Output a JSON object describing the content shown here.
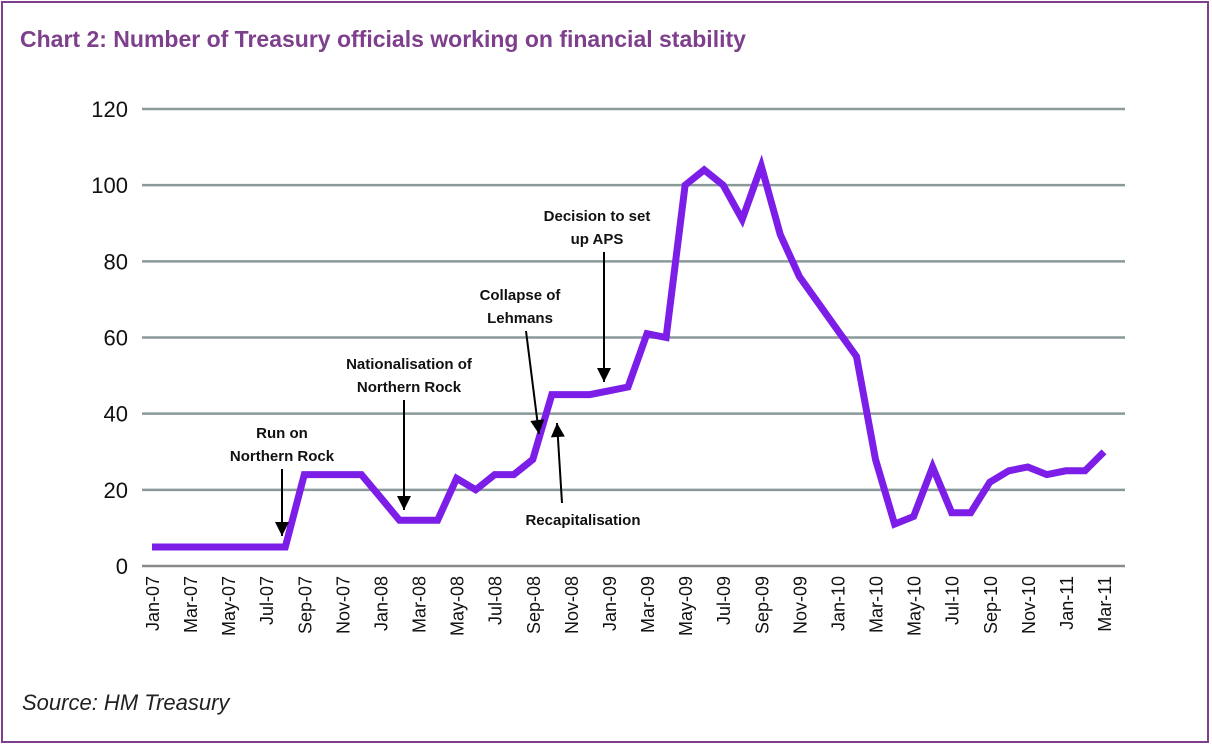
{
  "chart_data": {
    "type": "line",
    "title": "Chart 2: Number of Treasury officials working on financial stability",
    "source": "Source: HM Treasury",
    "xlabel": "",
    "ylabel": "",
    "ylim": [
      0,
      120
    ],
    "yticks": [
      0,
      20,
      40,
      60,
      80,
      100,
      120
    ],
    "grid": true,
    "line_color": "#7c1ee8",
    "accent_color": "#7e3f8c",
    "x": [
      "Jan-07",
      "Feb-07",
      "Mar-07",
      "Apr-07",
      "May-07",
      "Jun-07",
      "Jul-07",
      "Aug-07",
      "Sep-07",
      "Oct-07",
      "Nov-07",
      "Dec-07",
      "Jan-08",
      "Feb-08",
      "Mar-08",
      "Apr-08",
      "May-08",
      "Jun-08",
      "Jul-08",
      "Aug-08",
      "Sep-08",
      "Oct-08",
      "Nov-08",
      "Dec-08",
      "Jan-09",
      "Feb-09",
      "Mar-09",
      "Apr-09",
      "May-09",
      "Jun-09",
      "Jul-09",
      "Aug-09",
      "Sep-09",
      "Oct-09",
      "Nov-09",
      "Dec-09",
      "Jan-10",
      "Feb-10",
      "Mar-10",
      "Apr-10",
      "May-10",
      "Jun-10",
      "Jul-10",
      "Aug-10",
      "Sep-10",
      "Oct-10",
      "Nov-10",
      "Dec-10",
      "Jan-11",
      "Feb-11",
      "Mar-11"
    ],
    "xtick_labels": [
      "Jan-07",
      "Mar-07",
      "May-07",
      "Jul-07",
      "Sep-07",
      "Nov-07",
      "Jan-08",
      "Mar-08",
      "May-08",
      "Jul-08",
      "Sep-08",
      "Nov-08",
      "Jan-09",
      "Mar-09",
      "May-09",
      "Jul-09",
      "Sep-09",
      "Nov-09",
      "Jan-10",
      "Mar-10",
      "May-10",
      "Jul-10",
      "Sep-10",
      "Nov-10",
      "Jan-11",
      "Mar-11"
    ],
    "series": [
      {
        "values": [
          5,
          5,
          5,
          5,
          5,
          5,
          5,
          5,
          24,
          24,
          24,
          24,
          18,
          12,
          12,
          12,
          23,
          20,
          24,
          24,
          28,
          45,
          45,
          45,
          46,
          47,
          61,
          60,
          100,
          104,
          100,
          91,
          105,
          87,
          76,
          69,
          62,
          55,
          28,
          11,
          13,
          26,
          14,
          14,
          22,
          25,
          26,
          24,
          25,
          25,
          30
        ]
      }
    ],
    "annotations": [
      {
        "lines": [
          "Run on",
          "Northern Rock"
        ],
        "month": "Aug-07"
      },
      {
        "lines": [
          "Nationalisation of",
          "Northern Rock"
        ],
        "month": "Feb-08"
      },
      {
        "lines": [
          "Collapse of",
          "Lehmans"
        ],
        "month": "Sep-08"
      },
      {
        "lines": [
          "Recapitalisation"
        ],
        "month": "Oct-08"
      },
      {
        "lines": [
          "Decision to set",
          "up APS"
        ],
        "month": "Dec-08"
      }
    ]
  }
}
